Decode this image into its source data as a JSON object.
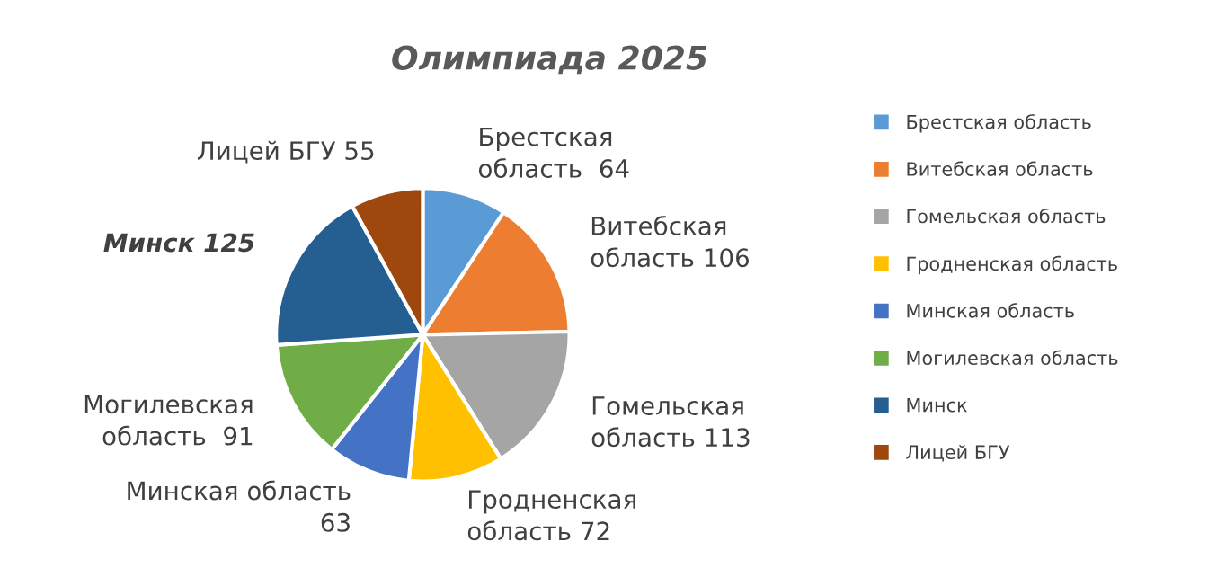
{
  "chart_data": {
    "type": "pie",
    "title": "Олимпиада 2025",
    "categories": [
      "Брестская область",
      "Витебская область",
      "Гомельская область",
      "Гродненская область",
      "Минская область",
      "Могилевская область",
      "Минск",
      "Лицей БГУ"
    ],
    "values": [
      64,
      106,
      113,
      72,
      63,
      91,
      125,
      55
    ],
    "colors": [
      "#5b9bd5",
      "#ed7d31",
      "#a5a5a5",
      "#ffc000",
      "#4472c4",
      "#70ad47",
      "#255e91",
      "#9e480e"
    ],
    "value_labels": [
      "Брестская\nобласть  64",
      "Витебская\nобласть 106",
      "Гомельская\nобласть 113",
      "Гродненская\nобласть 72",
      "Минская область\n63",
      "Могилевская\nобласть  91",
      "Минск 125",
      "Лицей БГУ 55"
    ],
    "legend": "right"
  }
}
